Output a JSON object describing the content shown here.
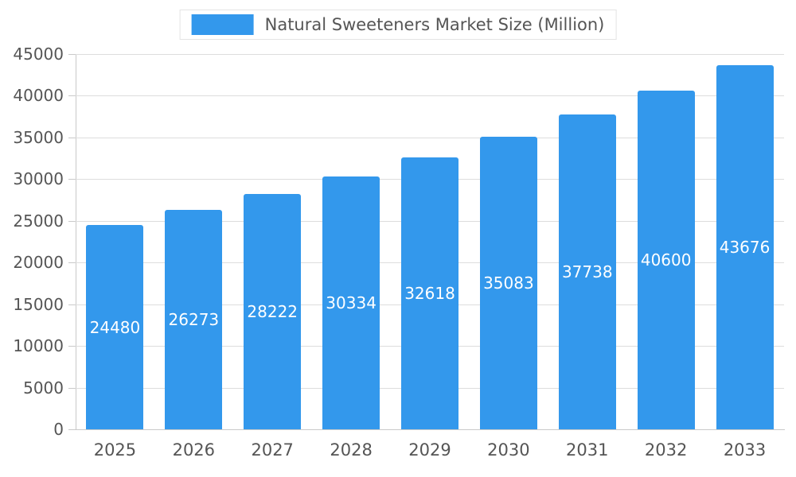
{
  "chart_data": {
    "type": "bar",
    "title": "Natural Sweeteners Market Size (Million)",
    "categories": [
      "2025",
      "2026",
      "2027",
      "2028",
      "2029",
      "2030",
      "2031",
      "2032",
      "2033"
    ],
    "values": [
      24480,
      26273,
      28222,
      30334,
      32618,
      35083,
      37738,
      40600,
      43676
    ],
    "xlabel": "",
    "ylabel": "",
    "ylim": [
      0,
      45000
    ],
    "ytick_step": 5000,
    "yticks": [
      0,
      5000,
      10000,
      15000,
      20000,
      25000,
      30000,
      35000,
      40000,
      45000
    ],
    "grid": true,
    "legend_position": "top-center",
    "bar_label_position": "inside-center",
    "colors": {
      "bar": "#3398ec",
      "bar_label": "#ffffff",
      "axis_text": "#555555",
      "grid_line": "#dddddd",
      "axis_line": "#c9c9c9",
      "background": "#ffffff",
      "legend_border": "#e4e4e4"
    }
  }
}
